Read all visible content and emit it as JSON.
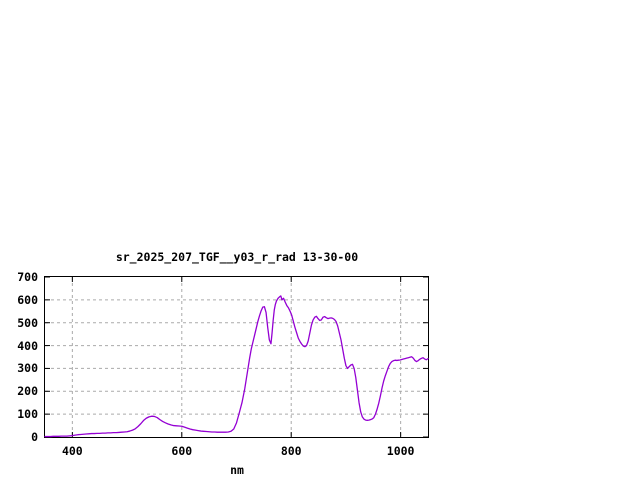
{
  "window": {
    "background": "#ffffff"
  },
  "chart_data": {
    "type": "line",
    "title": "sr_2025_207_TGF__y03_r_rad 13-30-00",
    "xlabel": "nm",
    "ylabel": "",
    "xlim": [
      350,
      1050
    ],
    "ylim": [
      0,
      700
    ],
    "xticks": [
      400,
      600,
      800,
      1000
    ],
    "yticks": [
      0,
      100,
      200,
      300,
      400,
      500,
      600,
      700
    ],
    "grid": true,
    "legend_position": "none",
    "line_color": "#9400d3",
    "grid_color": "#aaaaaa",
    "axis_color": "#000000",
    "series": [
      {
        "x": [
          350,
          355,
          360,
          365,
          370,
          375,
          380,
          385,
          390,
          395,
          400,
          405,
          410,
          415,
          420,
          425,
          430,
          435,
          440,
          445,
          450,
          455,
          460,
          465,
          470,
          475,
          480,
          485,
          490,
          495,
          500,
          505,
          510,
          515,
          520,
          525,
          530,
          535,
          540,
          545,
          550,
          555,
          560,
          565,
          570,
          575,
          580,
          585,
          590,
          595,
          600,
          605,
          610,
          615,
          620,
          625,
          630,
          635,
          640,
          645,
          650,
          655,
          660,
          665,
          670,
          675,
          680,
          685,
          690,
          695,
          700,
          705,
          710,
          715,
          718,
          721,
          724,
          727,
          730,
          733,
          736,
          739,
          742,
          745,
          748,
          751,
          754,
          757,
          760,
          763,
          765,
          767,
          769,
          771,
          773,
          776,
          779,
          781,
          783,
          786,
          789,
          792,
          795,
          798,
          801,
          804,
          807,
          810,
          813,
          816,
          819,
          822,
          825,
          828,
          831,
          834,
          837,
          840,
          843,
          846,
          849,
          852,
          855,
          858,
          861,
          864,
          867,
          870,
          873,
          876,
          879,
          882,
          885,
          888,
          891,
          894,
          897,
          900,
          903,
          906,
          909,
          912,
          915,
          918,
          921,
          924,
          927,
          930,
          933,
          936,
          939,
          942,
          945,
          948,
          951,
          954,
          957,
          960,
          963,
          966,
          969,
          972,
          975,
          978,
          981,
          984,
          987,
          990,
          993,
          996,
          999,
          1002,
          1005,
          1008,
          1011,
          1014,
          1017,
          1020,
          1023,
          1026,
          1029,
          1032,
          1035,
          1038,
          1041,
          1044,
          1047,
          1050
        ],
        "y": [
          2,
          2,
          2,
          3,
          3,
          3,
          4,
          4,
          4,
          5,
          6,
          8,
          10,
          11,
          12,
          13,
          14,
          15,
          15,
          16,
          16,
          17,
          17,
          18,
          18,
          19,
          19,
          20,
          21,
          22,
          23,
          26,
          30,
          36,
          46,
          58,
          72,
          82,
          88,
          91,
          90,
          85,
          76,
          68,
          62,
          57,
          53,
          50,
          49,
          48,
          47,
          43,
          39,
          35,
          32,
          30,
          28,
          26,
          25,
          24,
          23,
          22,
          22,
          21,
          21,
          21,
          21,
          22,
          25,
          35,
          62,
          105,
          150,
          210,
          255,
          300,
          345,
          385,
          415,
          445,
          475,
          505,
          530,
          552,
          568,
          570,
          545,
          480,
          425,
          408,
          455,
          510,
          555,
          580,
          595,
          607,
          614,
          617,
          600,
          607,
          590,
          575,
          565,
          550,
          532,
          505,
          478,
          455,
          432,
          418,
          407,
          398,
          395,
          400,
          420,
          455,
          490,
          512,
          524,
          528,
          518,
          510,
          512,
          524,
          527,
          522,
          518,
          520,
          521,
          519,
          514,
          505,
          485,
          455,
          425,
          385,
          345,
          312,
          300,
          308,
          315,
          318,
          300,
          260,
          205,
          150,
          110,
          88,
          78,
          74,
          73,
          74,
          76,
          79,
          85,
          100,
          122,
          148,
          180,
          215,
          245,
          268,
          288,
          308,
          322,
          330,
          334,
          336,
          335,
          336,
          337,
          339,
          341,
          343,
          345,
          347,
          349,
          351,
          345,
          335,
          330,
          334,
          340,
          344,
          347,
          341,
          338,
          343
        ]
      }
    ]
  }
}
